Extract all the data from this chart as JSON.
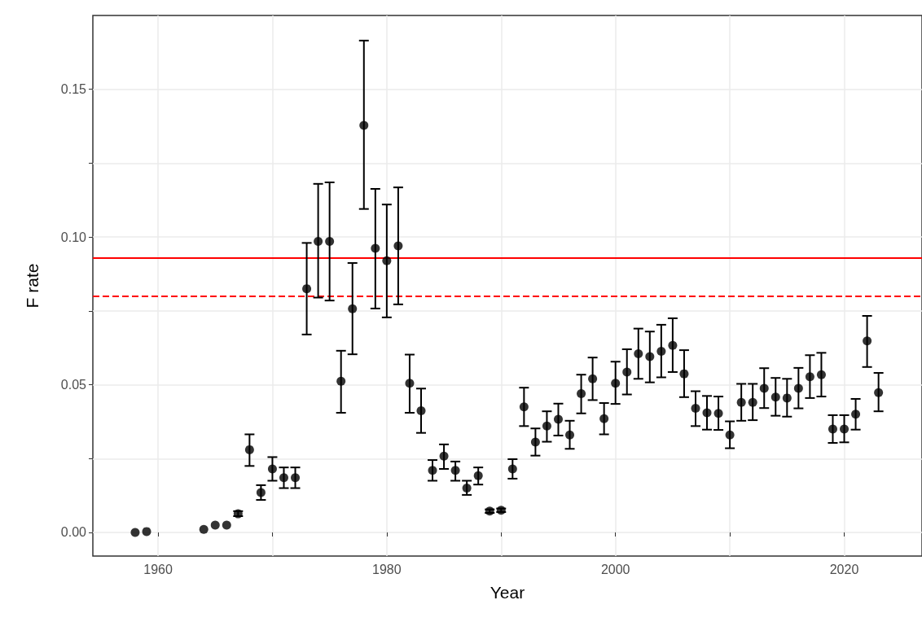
{
  "chart_data": {
    "type": "scatter",
    "xlabel": "Year",
    "ylabel": "F rate",
    "xlim": [
      1954.3,
      2026.8
    ],
    "ylim": [
      -0.008,
      0.175
    ],
    "xticks": [
      1960,
      {
        "value": 1970,
        "label": null
      },
      1980,
      {
        "value": 1990,
        "label": null
      },
      2000,
      {
        "value": 2010,
        "label": null
      },
      2020
    ],
    "yticks": [
      "0.00",
      {
        "value": 0.025,
        "label": null
      },
      {
        "value": 0.05,
        "label": "0.05"
      },
      {
        "value": 0.075,
        "label": null
      },
      {
        "value": 0.1,
        "label": "0.10"
      },
      {
        "value": 0.125,
        "label": null
      },
      {
        "value": 0.15,
        "label": "0.15"
      }
    ],
    "grid": true,
    "marker": "circle",
    "x": [
      1958,
      1959,
      1964,
      1965,
      1966,
      1967,
      1968,
      1969,
      1970,
      1971,
      1972,
      1973,
      1974,
      1975,
      1976,
      1977,
      1978,
      1979,
      1980,
      1981,
      1982,
      1983,
      1984,
      1985,
      1986,
      1987,
      1988,
      1989,
      1990,
      1991,
      1992,
      1993,
      1994,
      1995,
      1996,
      1997,
      1998,
      1999,
      2000,
      2001,
      2002,
      2003,
      2004,
      2005,
      2006,
      2007,
      2008,
      2009,
      2010,
      2011,
      2012,
      2013,
      2014,
      2015,
      2016,
      2017,
      2018,
      2019,
      2020,
      2021,
      2022,
      2023
    ],
    "series": [
      {
        "color": "#000000",
        "values": [
          0.0,
          0.0003,
          0.001,
          0.0025,
          0.0025,
          0.0063,
          0.028,
          0.0135,
          0.0215,
          0.0185,
          0.0185,
          0.0825,
          0.0985,
          0.0985,
          0.0512,
          0.0757,
          0.1378,
          0.0962,
          0.092,
          0.097,
          0.0505,
          0.0412,
          0.021,
          0.0258,
          0.021,
          0.015,
          0.0192,
          0.0072,
          0.0075,
          0.0215,
          0.0425,
          0.0306,
          0.036,
          0.0383,
          0.033,
          0.047,
          0.052,
          0.0385,
          0.0505,
          0.0543,
          0.0605,
          0.0595,
          0.0613,
          0.0633,
          0.0537,
          0.042,
          0.0405,
          0.0403,
          0.033,
          0.044,
          0.044,
          0.0488,
          0.0458,
          0.0455,
          0.0488,
          0.0527,
          0.0534,
          0.035,
          0.035,
          0.04,
          0.0648,
          0.0473
        ],
        "errors": [
          null,
          null,
          null,
          null,
          null,
          [
            0.0055,
            0.0072
          ],
          [
            0.0225,
            0.0332
          ],
          [
            0.011,
            0.016
          ],
          [
            0.0175,
            0.0255
          ],
          [
            0.015,
            0.022
          ],
          [
            0.015,
            0.022
          ],
          [
            0.067,
            0.098
          ],
          [
            0.0795,
            0.118
          ],
          [
            0.0785,
            0.1185
          ],
          [
            0.0405,
            0.0615
          ],
          [
            0.0603,
            0.0912
          ],
          [
            0.1095,
            0.1665
          ],
          [
            0.0758,
            0.1163
          ],
          [
            0.0728,
            0.111
          ],
          [
            0.0772,
            0.1168
          ],
          [
            0.0405,
            0.0602
          ],
          [
            0.0337,
            0.0487
          ],
          [
            0.0175,
            0.0245
          ],
          [
            0.0215,
            0.0298
          ],
          [
            0.0175,
            0.024
          ],
          [
            0.0127,
            0.0175
          ],
          [
            0.0162,
            0.022
          ],
          [
            0.0066,
            0.0078
          ],
          [
            0.0069,
            0.0081
          ],
          [
            0.0182,
            0.0248
          ],
          [
            0.036,
            0.049
          ],
          [
            0.026,
            0.0352
          ],
          [
            0.0307,
            0.041
          ],
          [
            0.0328,
            0.0436
          ],
          [
            0.0283,
            0.0378
          ],
          [
            0.0403,
            0.0534
          ],
          [
            0.0448,
            0.0592
          ],
          [
            0.0332,
            0.0438
          ],
          [
            0.0435,
            0.0578
          ],
          [
            0.0467,
            0.062
          ],
          [
            0.052,
            0.069
          ],
          [
            0.0508,
            0.068
          ],
          [
            0.0525,
            0.0703
          ],
          [
            0.0543,
            0.0725
          ],
          [
            0.0458,
            0.0617
          ],
          [
            0.036,
            0.0478
          ],
          [
            0.0348,
            0.0462
          ],
          [
            0.0347,
            0.046
          ],
          [
            0.0285,
            0.0376
          ],
          [
            0.0378,
            0.0503
          ],
          [
            0.038,
            0.0503
          ],
          [
            0.0421,
            0.0556
          ],
          [
            0.0395,
            0.0523
          ],
          [
            0.0392,
            0.052
          ],
          [
            0.042,
            0.0557
          ],
          [
            0.0455,
            0.06
          ],
          [
            0.046,
            0.0608
          ],
          [
            0.0303,
            0.0397
          ],
          [
            0.0305,
            0.0397
          ],
          [
            0.0348,
            0.0452
          ],
          [
            0.056,
            0.0733
          ],
          [
            0.041,
            0.054
          ]
        ]
      }
    ],
    "ref_lines": [
      {
        "axis": "y",
        "value": 0.093,
        "color": "#ff0000",
        "line_style": "solid"
      },
      {
        "axis": "y",
        "value": 0.08,
        "color": "#ff0000",
        "line_style": "dashed"
      }
    ]
  }
}
